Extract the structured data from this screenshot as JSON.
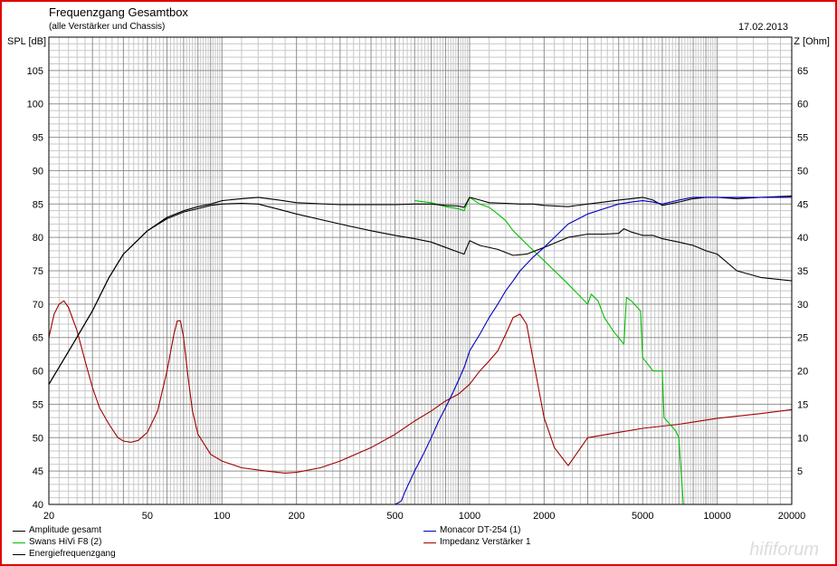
{
  "chart_data": {
    "type": "line",
    "title": "Frequenzgang Gesamtbox",
    "subtitle": "(alle Verstärker und Chassis)",
    "date": "17.02.2013",
    "ylabel": "SPL [dB]",
    "y2label": "Z [Ohm]",
    "xscale": "log",
    "xlim": [
      20,
      20000
    ],
    "ylim": [
      40,
      110
    ],
    "y2lim": [
      0,
      70
    ],
    "x_ticks": [
      20,
      50,
      100,
      200,
      500,
      1000,
      2000,
      5000,
      10000,
      20000
    ],
    "y_ticks": [
      40,
      45,
      50,
      55,
      60,
      65,
      70,
      75,
      80,
      85,
      90,
      95,
      100,
      105
    ],
    "y2_ticks": [
      5,
      10,
      15,
      20,
      25,
      30,
      35,
      40,
      45,
      50,
      55,
      60,
      65
    ],
    "grid": true,
    "legend_position": "bottom",
    "series": [
      {
        "name": "Amplitude gesamt",
        "color": "#000000",
        "axis": "left",
        "x": [
          20,
          25,
          30,
          35,
          40,
          50,
          60,
          70,
          80,
          90,
          100,
          120,
          140,
          170,
          200,
          300,
          400,
          500,
          600,
          700,
          800,
          900,
          950,
          1000,
          1100,
          1200,
          1400,
          1600,
          1800,
          2000,
          2500,
          3000,
          3500,
          4000,
          4500,
          5000,
          5500,
          6000,
          7000,
          8000,
          9000,
          10000,
          12000,
          15000,
          20000
        ],
        "y": [
          58,
          64,
          69,
          74,
          77.5,
          81,
          83,
          84,
          84.6,
          85,
          85.5,
          85.8,
          86,
          85.6,
          85.2,
          84.9,
          84.9,
          84.9,
          85,
          85,
          84.8,
          84.7,
          84.5,
          86,
          85.6,
          85.2,
          85.1,
          85,
          85,
          84.8,
          84.6,
          85,
          85.3,
          85.6,
          85.8,
          86,
          85.6,
          84.8,
          85.3,
          85.8,
          86,
          86,
          85.8,
          86,
          86.2
        ]
      },
      {
        "name": "Swans HiVi F8 (2)",
        "color": "#00c000",
        "axis": "left",
        "x": [
          600,
          700,
          800,
          900,
          950,
          1000,
          1100,
          1200,
          1300,
          1400,
          1500,
          1700,
          2000,
          2500,
          3000,
          3100,
          3300,
          3500,
          3800,
          4200,
          4300,
          4500,
          4900,
          5000,
          5500,
          6000,
          6100,
          6800,
          7000,
          7300,
          8000,
          10000,
          20000
        ],
        "y": [
          85.5,
          85.2,
          84.6,
          84.3,
          84,
          86,
          85,
          84.5,
          83.5,
          82.5,
          81,
          79,
          76.5,
          73,
          70,
          71.5,
          70.5,
          68,
          66,
          64,
          71,
          70.5,
          69,
          62,
          60,
          60,
          53,
          51,
          50,
          40,
          40,
          40,
          40
        ]
      },
      {
        "name": "Energiefrequenzgang",
        "color": "#000000",
        "axis": "left",
        "x": [
          20,
          25,
          30,
          35,
          40,
          50,
          60,
          70,
          80,
          90,
          100,
          120,
          140,
          170,
          200,
          300,
          400,
          500,
          600,
          700,
          800,
          900,
          950,
          1000,
          1100,
          1300,
          1500,
          1700,
          2000,
          2500,
          3000,
          3500,
          4000,
          4200,
          4500,
          5000,
          5500,
          6000,
          7000,
          8000,
          9000,
          10000,
          12000,
          15000,
          20000
        ],
        "y": [
          58,
          64,
          69,
          74,
          77.5,
          81,
          82.8,
          83.8,
          84.3,
          84.8,
          85,
          85.1,
          85,
          84.2,
          83.5,
          82,
          81,
          80.3,
          79.8,
          79.3,
          78.5,
          77.8,
          77.5,
          79.5,
          78.8,
          78.2,
          77.3,
          77.5,
          78.5,
          80,
          80.5,
          80.5,
          80.6,
          81.3,
          80.8,
          80.3,
          80.3,
          79.8,
          79.3,
          78.8,
          78,
          77.5,
          75,
          74,
          73.5
        ]
      },
      {
        "name": "Monacor DT-254 (1)",
        "color": "#0000c0",
        "axis": "left",
        "x": [
          20,
          100,
          300,
          500,
          530,
          550,
          600,
          650,
          700,
          750,
          800,
          850,
          900,
          950,
          1000,
          1100,
          1200,
          1300,
          1400,
          1500,
          1600,
          1800,
          2000,
          2200,
          2500,
          3000,
          3500,
          4000,
          4500,
          5000,
          5500,
          6000,
          7000,
          8000,
          10000,
          20000
        ],
        "y": [
          40,
          40,
          40,
          40,
          40.5,
          42,
          45,
          47.5,
          50,
          52.5,
          54.5,
          56.5,
          58.5,
          60.5,
          63,
          65.5,
          68,
          70,
          72,
          73.5,
          75,
          77,
          78.5,
          80,
          82,
          83.5,
          84.3,
          85,
          85.3,
          85.5,
          85.3,
          85,
          85.6,
          86,
          86,
          86
        ]
      },
      {
        "name": "Impedanz Verstärker 1",
        "color": "#a00000",
        "axis": "right",
        "x": [
          20,
          21,
          22,
          23,
          24,
          26,
          28,
          30,
          32,
          35,
          38,
          40,
          43,
          46,
          50,
          55,
          60,
          64,
          66,
          68,
          70,
          73,
          76,
          80,
          90,
          100,
          120,
          150,
          180,
          200,
          250,
          300,
          400,
          500,
          600,
          700,
          800,
          900,
          1000,
          1100,
          1200,
          1300,
          1400,
          1500,
          1600,
          1700,
          1800,
          2000,
          2200,
          2500,
          3000,
          4000,
          5000,
          7000,
          10000,
          15000,
          20000
        ],
        "y": [
          25,
          28.5,
          30,
          30.5,
          29.5,
          26,
          21.5,
          17.5,
          14.5,
          12,
          10,
          9.5,
          9.3,
          9.6,
          10.8,
          14,
          20,
          25.5,
          27.5,
          27.5,
          25,
          19,
          14,
          10.5,
          7.5,
          6.5,
          5.5,
          5,
          4.7,
          4.8,
          5.5,
          6.5,
          8.5,
          10.5,
          12.5,
          14,
          15.5,
          16.5,
          18,
          20,
          21.5,
          23,
          25.5,
          28,
          28.5,
          27,
          22,
          13,
          8.5,
          5.8,
          10.0,
          10.8,
          11.4,
          12.0,
          12.9,
          13.6,
          14.2
        ]
      }
    ]
  },
  "watermark": "hififorum"
}
